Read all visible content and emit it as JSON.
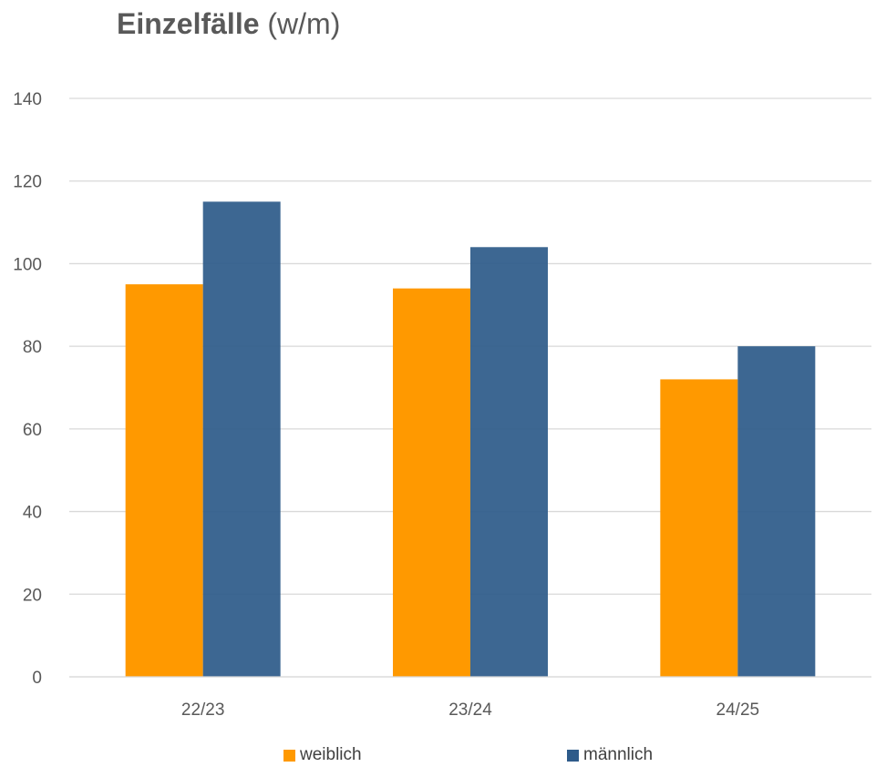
{
  "title": {
    "bold": "Einzelfälle",
    "normal": "(w/m)"
  },
  "chart_data": {
    "type": "bar",
    "title": "Einzelfälle (w/m)",
    "categories": [
      "22/23",
      "23/24",
      "24/25"
    ],
    "series": [
      {
        "name": "weiblich",
        "values": [
          95,
          94,
          72
        ],
        "color": "#ff9900"
      },
      {
        "name": "männlich",
        "values": [
          115,
          104,
          80
        ],
        "color": "#2e5b8a"
      }
    ],
    "xlabel": "",
    "ylabel": "",
    "ylim": [
      0,
      140
    ],
    "yticks": [
      "0",
      "20",
      "40",
      "60",
      "80",
      "100",
      "120",
      "140"
    ],
    "grid": true,
    "legend_position": "bottom"
  },
  "colors": {
    "grid": "#d9d9d9",
    "axis_text": "#595959"
  }
}
